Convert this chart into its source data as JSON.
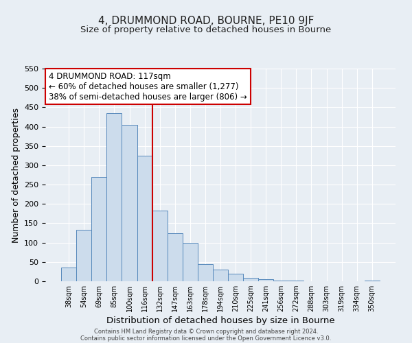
{
  "title": "4, DRUMMOND ROAD, BOURNE, PE10 9JF",
  "subtitle": "Size of property relative to detached houses in Bourne",
  "xlabel": "Distribution of detached houses by size in Bourne",
  "ylabel": "Number of detached properties",
  "bar_labels": [
    "38sqm",
    "54sqm",
    "69sqm",
    "85sqm",
    "100sqm",
    "116sqm",
    "132sqm",
    "147sqm",
    "163sqm",
    "178sqm",
    "194sqm",
    "210sqm",
    "225sqm",
    "241sqm",
    "256sqm",
    "272sqm",
    "288sqm",
    "303sqm",
    "319sqm",
    "334sqm",
    "350sqm"
  ],
  "bar_values": [
    35,
    133,
    270,
    435,
    405,
    325,
    183,
    125,
    100,
    45,
    30,
    20,
    8,
    5,
    2,
    1,
    0,
    0,
    0,
    0,
    2
  ],
  "bar_color": "#ccdcec",
  "bar_edge_color": "#5588bb",
  "vline_x": 5.5,
  "vline_color": "#cc0000",
  "ylim": [
    0,
    550
  ],
  "yticks": [
    0,
    50,
    100,
    150,
    200,
    250,
    300,
    350,
    400,
    450,
    500,
    550
  ],
  "annotation_title": "4 DRUMMOND ROAD: 117sqm",
  "annotation_line1": "← 60% of detached houses are smaller (1,277)",
  "annotation_line2": "38% of semi-detached houses are larger (806) →",
  "annotation_box_facecolor": "#ffffff",
  "annotation_box_edgecolor": "#cc0000",
  "footer1": "Contains HM Land Registry data © Crown copyright and database right 2024.",
  "footer2": "Contains public sector information licensed under the Open Government Licence v3.0.",
  "fig_facecolor": "#e8eef4",
  "plot_facecolor": "#e8eef4",
  "grid_color": "#ffffff"
}
